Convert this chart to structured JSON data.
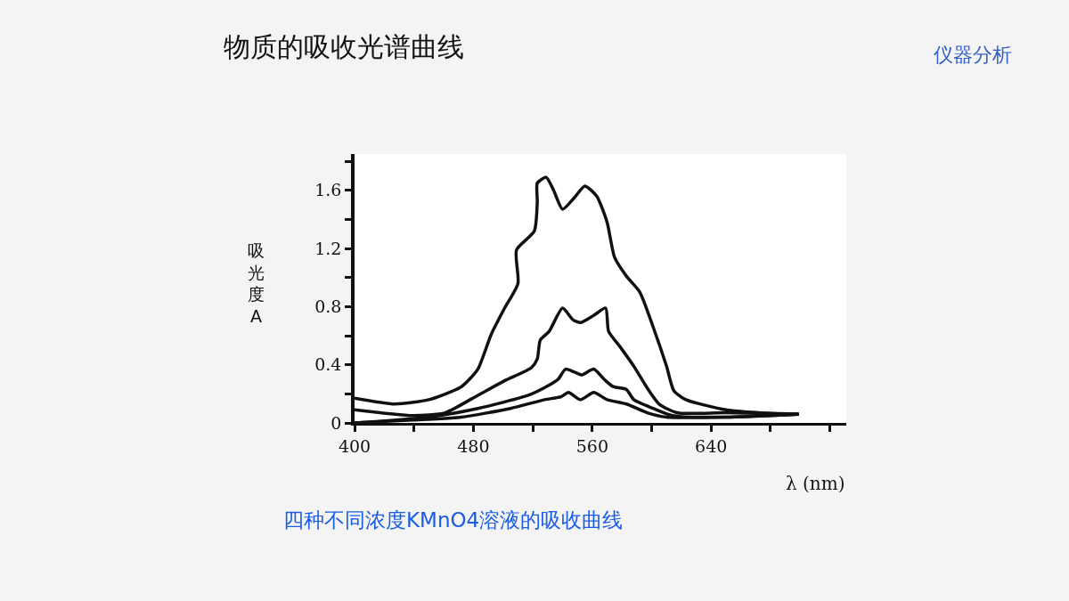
{
  "chart_data": {
    "type": "line",
    "title": "物质的吸收光谱曲线",
    "xlabel": "λ (nm)",
    "ylabel": "吸光度A",
    "annotations": [
      "仪器分析",
      "四种不同浓度KMnO4溶液的吸收曲线"
    ],
    "xlim": [
      400,
      731
    ],
    "xticks": [
      400,
      {
        "value": 440,
        "label": null
      },
      480,
      {
        "value": 520,
        "label": null
      },
      560,
      {
        "value": 600,
        "label": null
      },
      640,
      {
        "value": 680,
        "label": null
      },
      {
        "value": 720,
        "label": null
      }
    ],
    "ylim": [
      0,
      1.85
    ],
    "yticks": [
      0,
      {
        "value": 0.2,
        "label": null
      },
      0.4,
      {
        "value": 0.6,
        "label": null
      },
      0.8,
      {
        "value": 1.0,
        "label": null
      },
      1.2,
      {
        "value": 1.4,
        "label": null
      },
      1.6,
      {
        "value": 1.8,
        "label": null
      }
    ],
    "marker": "none",
    "line_style": "solid",
    "series": [
      {
        "color": "#111111",
        "x": [
          400,
          427,
          450,
          472,
          483,
          492,
          501,
          510,
          509,
          521,
          523,
          523,
          529,
          534,
          540,
          548,
          555,
          563,
          570,
          575,
          583,
          592,
          601,
          610,
          615,
          623,
          650,
          672,
          699
        ],
        "values": [
          0.17,
          0.13,
          0.16,
          0.25,
          0.37,
          0.61,
          0.79,
          0.96,
          1.19,
          1.32,
          1.52,
          1.65,
          1.69,
          1.6,
          1.47,
          1.55,
          1.63,
          1.56,
          1.38,
          1.14,
          1.01,
          0.9,
          0.66,
          0.39,
          0.22,
          0.16,
          0.09,
          0.07,
          0.06
        ]
      },
      {
        "color": "#111111",
        "x": [
          400,
          439,
          461,
          483,
          501,
          519,
          523,
          525,
          531,
          540,
          547,
          552,
          561,
          569,
          571,
          579,
          588,
          597,
          605,
          617,
          650,
          699
        ],
        "values": [
          0.09,
          0.05,
          0.07,
          0.19,
          0.29,
          0.38,
          0.44,
          0.57,
          0.63,
          0.79,
          0.71,
          0.69,
          0.74,
          0.79,
          0.63,
          0.52,
          0.39,
          0.24,
          0.13,
          0.07,
          0.07,
          0.06
        ]
      },
      {
        "color": "#111111",
        "x": [
          400,
          450,
          483,
          517,
          531,
          537,
          542,
          548,
          553,
          561,
          568,
          574,
          583,
          588,
          601,
          614,
          650,
          699
        ],
        "values": [
          0,
          0.04,
          0.1,
          0.19,
          0.26,
          0.3,
          0.37,
          0.35,
          0.33,
          0.37,
          0.3,
          0.25,
          0.23,
          0.16,
          0.1,
          0.05,
          0.04,
          0.06
        ]
      },
      {
        "color": "#111111",
        "x": [
          400,
          439,
          472,
          505,
          528,
          539,
          544,
          552,
          561,
          570,
          583,
          597,
          610,
          650,
          699
        ],
        "values": [
          0,
          0.02,
          0.04,
          0.1,
          0.16,
          0.18,
          0.21,
          0.16,
          0.21,
          0.16,
          0.13,
          0.07,
          0.04,
          0.04,
          0.06
        ]
      }
    ]
  }
}
